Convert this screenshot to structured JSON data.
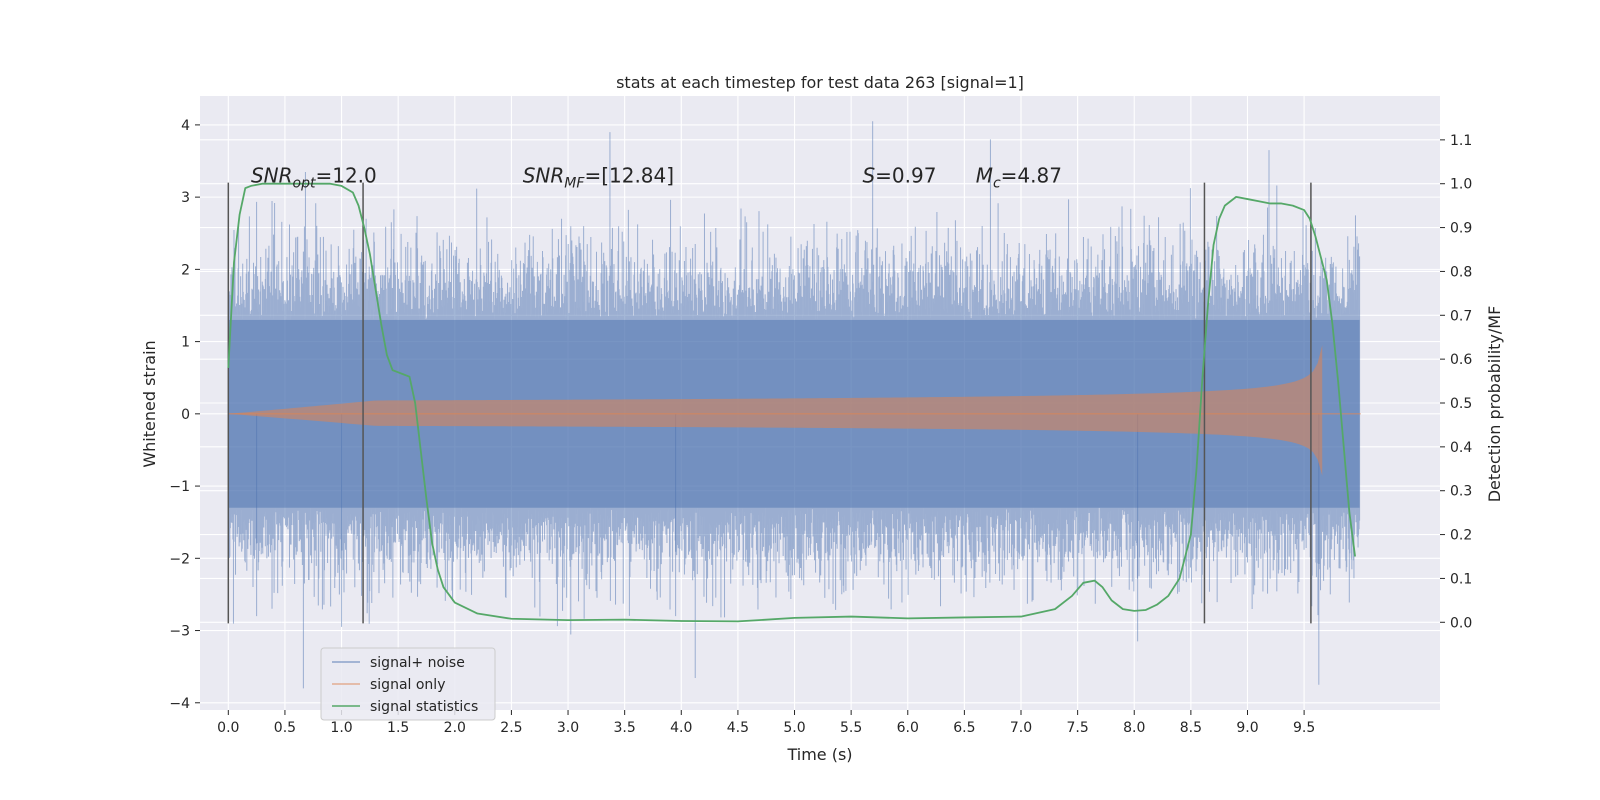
{
  "chart_data": {
    "type": "line",
    "title": "stats at each timestep for test data 263 [signal=1]",
    "xlabel": "Time (s)",
    "ylabel": "Whitened strain",
    "ylabel_right": "Detection probability/MF",
    "xlim": [
      -0.25,
      10.7
    ],
    "ylim": [
      -4.1,
      4.4
    ],
    "ylim_right": [
      -0.2,
      1.2
    ],
    "x_ticks": [
      0.0,
      0.5,
      1.0,
      1.5,
      2.0,
      2.5,
      3.0,
      3.5,
      4.0,
      4.5,
      5.0,
      5.5,
      6.0,
      6.5,
      7.0,
      7.5,
      8.0,
      8.5,
      9.0,
      9.5
    ],
    "x_tick_labels": [
      "0.0",
      "0.5",
      "1.0",
      "1.5",
      "2.0",
      "2.5",
      "3.0",
      "3.5",
      "4.0",
      "4.5",
      "5.0",
      "5.5",
      "6.0",
      "6.5",
      "7.0",
      "7.5",
      "8.0",
      "8.5",
      "9.0",
      "9.5"
    ],
    "y_ticks": [
      4,
      3,
      2,
      1,
      0,
      -1,
      -2,
      -3,
      -4
    ],
    "y_tick_labels": [
      "4",
      "3",
      "2",
      "1",
      "0",
      "−1",
      "−2",
      "−3",
      "−4"
    ],
    "y_ticks_right": [
      1.1,
      1.0,
      0.9,
      0.8,
      0.7,
      0.6,
      0.5,
      0.4,
      0.3,
      0.2,
      0.1,
      0.0
    ],
    "y_tick_labels_right": [
      "1.1",
      "1.0",
      "0.9",
      "0.8",
      "0.7",
      "0.6",
      "0.5",
      "0.4",
      "0.3",
      "0.2",
      "0.1",
      "0.0"
    ],
    "grid": true,
    "legend_position": "bottom-left",
    "annotations": [
      {
        "text": "SNR_opt=12.0",
        "x": 0.2,
        "y": 3.2
      },
      {
        "text": "SNR_MF=[12.84]",
        "x": 2.6,
        "y": 3.2
      },
      {
        "text": "S=0.97",
        "x": 5.6,
        "y": 3.2
      },
      {
        "text": "M_c=4.87",
        "x": 6.6,
        "y": 3.2
      }
    ],
    "vertical_lines": [
      0.0,
      1.19,
      8.62,
      9.56
    ],
    "vertical_line_range": [
      -2.9,
      3.2
    ],
    "series": [
      {
        "name": "signal+ noise",
        "color": "#4c72b0",
        "kind": "noise",
        "t_range": [
          0.0,
          9.99
        ],
        "base_amplitude": 1.3,
        "extreme_spikes": [
          [
            3.37,
            3.9
          ],
          [
            5.69,
            4.05
          ],
          [
            6.73,
            3.8
          ],
          [
            9.19,
            3.65
          ],
          [
            8.03,
            -3.15
          ],
          [
            9.63,
            -3.75
          ],
          [
            1.0,
            -2.95
          ],
          [
            0.25,
            -2.8
          ],
          [
            3.95,
            -2.8
          ]
        ]
      },
      {
        "name": "signal only",
        "color": "#dd8452",
        "kind": "chirp",
        "t_start": 0.0,
        "t_merger": 9.66,
        "t_end": 10.0,
        "peak_amplitude": 0.95
      },
      {
        "name": "signal statistics",
        "color": "#55a868",
        "axis": "right",
        "x": [
          0.0,
          0.05,
          0.1,
          0.15,
          0.2,
          0.3,
          0.5,
          0.7,
          0.9,
          1.0,
          1.1,
          1.15,
          1.2,
          1.25,
          1.3,
          1.35,
          1.4,
          1.45,
          1.5,
          1.55,
          1.6,
          1.65,
          1.7,
          1.75,
          1.8,
          1.85,
          1.9,
          2.0,
          2.2,
          2.5,
          3.0,
          3.5,
          4.0,
          4.5,
          5.0,
          5.5,
          6.0,
          6.5,
          7.0,
          7.3,
          7.45,
          7.55,
          7.65,
          7.72,
          7.8,
          7.9,
          8.0,
          8.1,
          8.2,
          8.3,
          8.4,
          8.5,
          8.55,
          8.6,
          8.65,
          8.7,
          8.75,
          8.8,
          8.9,
          9.0,
          9.1,
          9.2,
          9.3,
          9.4,
          9.5,
          9.55,
          9.6,
          9.65,
          9.7,
          9.75,
          9.8,
          9.85,
          9.9,
          9.95
        ],
        "values": [
          0.58,
          0.82,
          0.93,
          0.99,
          0.995,
          1.0,
          1.0,
          1.0,
          1.0,
          0.995,
          0.98,
          0.95,
          0.9,
          0.84,
          0.76,
          0.68,
          0.61,
          0.575,
          0.57,
          0.565,
          0.56,
          0.5,
          0.39,
          0.28,
          0.18,
          0.12,
          0.08,
          0.045,
          0.02,
          0.008,
          0.005,
          0.006,
          0.003,
          0.002,
          0.01,
          0.013,
          0.009,
          0.011,
          0.013,
          0.03,
          0.06,
          0.09,
          0.095,
          0.08,
          0.05,
          0.03,
          0.026,
          0.028,
          0.04,
          0.06,
          0.1,
          0.2,
          0.35,
          0.55,
          0.72,
          0.86,
          0.92,
          0.95,
          0.97,
          0.965,
          0.96,
          0.955,
          0.955,
          0.95,
          0.94,
          0.92,
          0.88,
          0.83,
          0.78,
          0.68,
          0.55,
          0.4,
          0.25,
          0.15
        ]
      }
    ]
  }
}
